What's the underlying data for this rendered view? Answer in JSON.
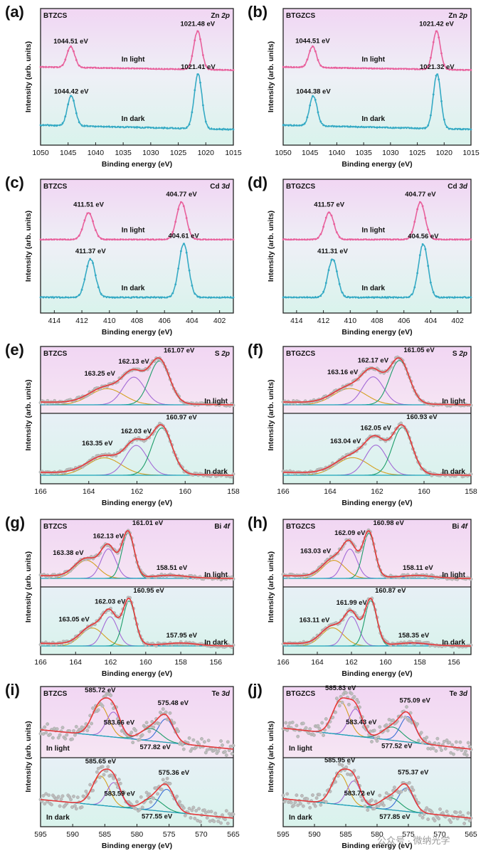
{
  "figure": {
    "watermark": "公众号 · 微纳光学",
    "colors": {
      "light_curve": "#e8609c",
      "dark_curve": "#35aac4",
      "fit_total": "#e8383a",
      "frame": "#222222",
      "bg_top": "#f3d8f2",
      "bg_bottom": "#dff3ee",
      "raw_gray": "#bdbdbd"
    },
    "ylabel": "Intensity (arb. units)",
    "xlabel": "Binding energy (eV)"
  },
  "chart_data": [
    {
      "panel": "(a)",
      "type": "line",
      "sample": "BTZCS",
      "element": "Zn",
      "orbital": "2p",
      "title": "Zn 2p",
      "xlabel": "Binding energy (eV)",
      "ylabel": "Intensity (arb. units)",
      "xlim": [
        1050,
        1015
      ],
      "xticks": [
        1050,
        1045,
        1040,
        1035,
        1030,
        1025,
        1020,
        1015
      ],
      "series": [
        {
          "name": "In light",
          "condition": "light",
          "peaks": [
            {
              "be": 1044.51,
              "label": "1044.51 eV"
            },
            {
              "be": 1021.48,
              "label": "1021.48 eV"
            }
          ]
        },
        {
          "name": "In dark",
          "condition": "dark",
          "peaks": [
            {
              "be": 1044.42,
              "label": "1044.42 eV"
            },
            {
              "be": 1021.41,
              "label": "1021.41 eV"
            }
          ]
        }
      ]
    },
    {
      "panel": "(b)",
      "type": "line",
      "sample": "BTGZCS",
      "element": "Zn",
      "orbital": "2p",
      "title": "Zn 2p",
      "xlabel": "Binding energy (eV)",
      "ylabel": "Intensity (arb. units)",
      "xlim": [
        1050,
        1015
      ],
      "xticks": [
        1050,
        1045,
        1040,
        1035,
        1030,
        1025,
        1020,
        1015
      ],
      "series": [
        {
          "name": "In light",
          "condition": "light",
          "peaks": [
            {
              "be": 1044.51,
              "label": "1044.51 eV"
            },
            {
              "be": 1021.42,
              "label": "1021.42 eV"
            }
          ]
        },
        {
          "name": "In dark",
          "condition": "dark",
          "peaks": [
            {
              "be": 1044.38,
              "label": "1044.38 eV"
            },
            {
              "be": 1021.32,
              "label": "1021.32 eV"
            }
          ]
        }
      ]
    },
    {
      "panel": "(c)",
      "type": "line",
      "sample": "BTZCS",
      "element": "Cd",
      "orbital": "3d",
      "title": "Cd 3d",
      "xlabel": "Binding energy (eV)",
      "ylabel": "Intensity (arb. units)",
      "xlim": [
        415,
        401
      ],
      "xticks": [
        414,
        412,
        410,
        408,
        406,
        404,
        402
      ],
      "series": [
        {
          "name": "In light",
          "condition": "light",
          "peaks": [
            {
              "be": 411.51,
              "label": "411.51 eV"
            },
            {
              "be": 404.77,
              "label": "404.77 eV"
            }
          ]
        },
        {
          "name": "In dark",
          "condition": "dark",
          "peaks": [
            {
              "be": 411.37,
              "label": "411.37 eV"
            },
            {
              "be": 404.61,
              "label": "404.61 eV"
            }
          ]
        }
      ]
    },
    {
      "panel": "(d)",
      "type": "line",
      "sample": "BTGZCS",
      "element": "Cd",
      "orbital": "3d",
      "title": "Cd 3d",
      "xlabel": "Binding energy (eV)",
      "ylabel": "Intensity (arb. units)",
      "xlim": [
        415,
        401
      ],
      "xticks": [
        414,
        412,
        410,
        408,
        406,
        404,
        402
      ],
      "series": [
        {
          "name": "In light",
          "condition": "light",
          "peaks": [
            {
              "be": 411.57,
              "label": "411.57 eV"
            },
            {
              "be": 404.77,
              "label": "404.77 eV"
            }
          ]
        },
        {
          "name": "In dark",
          "condition": "dark",
          "peaks": [
            {
              "be": 411.31,
              "label": "411.31 eV"
            },
            {
              "be": 404.56,
              "label": "404.56 eV"
            }
          ]
        }
      ]
    },
    {
      "panel": "(e)",
      "type": "line",
      "sample": "BTZCS",
      "element": "S",
      "orbital": "2p",
      "title": "S 2p",
      "xlabel": "Binding energy (eV)",
      "ylabel": "Intensity (arb. units)",
      "xlim": [
        166,
        158
      ],
      "xticks": [
        166,
        164,
        162,
        160,
        158
      ],
      "series": [
        {
          "name": "In light",
          "condition": "light",
          "peaks": [
            {
              "be": 163.25,
              "label": "163.25 eV"
            },
            {
              "be": 162.13,
              "label": "162.13 eV"
            },
            {
              "be": 161.07,
              "label": "161.07 eV"
            }
          ]
        },
        {
          "name": "In dark",
          "condition": "dark",
          "peaks": [
            {
              "be": 163.35,
              "label": "163.35 eV"
            },
            {
              "be": 162.03,
              "label": "162.03 eV"
            },
            {
              "be": 160.97,
              "label": "160.97 eV"
            }
          ]
        }
      ]
    },
    {
      "panel": "(f)",
      "type": "line",
      "sample": "BTGZCS",
      "element": "S",
      "orbital": "2p",
      "title": "S 2p",
      "xlabel": "Binding energy (eV)",
      "ylabel": "Intensity (arb. units)",
      "xlim": [
        166,
        158
      ],
      "xticks": [
        166,
        164,
        162,
        160,
        158
      ],
      "series": [
        {
          "name": "In light",
          "condition": "light",
          "peaks": [
            {
              "be": 163.16,
              "label": "163.16 eV"
            },
            {
              "be": 162.17,
              "label": "162.17 eV"
            },
            {
              "be": 161.05,
              "label": "161.05 eV"
            }
          ]
        },
        {
          "name": "In dark",
          "condition": "dark",
          "peaks": [
            {
              "be": 163.04,
              "label": "163.04 eV"
            },
            {
              "be": 162.05,
              "label": "162.05 eV"
            },
            {
              "be": 160.93,
              "label": "160.93 eV"
            }
          ]
        }
      ]
    },
    {
      "panel": "(g)",
      "type": "line",
      "sample": "BTZCS",
      "element": "Bi",
      "orbital": "4f",
      "title": "Bi 4f",
      "xlabel": "Binding energy (eV)",
      "ylabel": "Intensity (arb. units)",
      "xlim": [
        166,
        155
      ],
      "xticks": [
        166,
        164,
        162,
        160,
        158,
        156
      ],
      "series": [
        {
          "name": "In light",
          "condition": "light",
          "peaks": [
            {
              "be": 163.38,
              "label": "163.38 eV"
            },
            {
              "be": 162.13,
              "label": "162.13 eV"
            },
            {
              "be": 161.01,
              "label": "161.01 eV"
            },
            {
              "be": 158.51,
              "label": "158.51 eV"
            }
          ]
        },
        {
          "name": "In dark",
          "condition": "dark",
          "peaks": [
            {
              "be": 163.05,
              "label": "163.05 eV"
            },
            {
              "be": 162.03,
              "label": "162.03 eV"
            },
            {
              "be": 160.95,
              "label": "160.95 eV"
            },
            {
              "be": 157.95,
              "label": "157.95 eV"
            }
          ]
        }
      ]
    },
    {
      "panel": "(h)",
      "type": "line",
      "sample": "BTGZCS",
      "element": "Bi",
      "orbital": "4f",
      "title": "Bi 4f",
      "xlabel": "Binding energy (eV)",
      "ylabel": "Intensity (arb. units)",
      "xlim": [
        166,
        155
      ],
      "xticks": [
        166,
        164,
        162,
        160,
        158,
        156
      ],
      "series": [
        {
          "name": "In light",
          "condition": "light",
          "peaks": [
            {
              "be": 163.03,
              "label": "163.03 eV"
            },
            {
              "be": 162.09,
              "label": "162.09 eV"
            },
            {
              "be": 160.98,
              "label": "160.98 eV"
            },
            {
              "be": 158.11,
              "label": "158.11 eV"
            }
          ]
        },
        {
          "name": "In dark",
          "condition": "dark",
          "peaks": [
            {
              "be": 163.11,
              "label": "163.11 eV"
            },
            {
              "be": 161.99,
              "label": "161.99 eV"
            },
            {
              "be": 160.87,
              "label": "160.87 eV"
            },
            {
              "be": 158.35,
              "label": "158.35 eV"
            }
          ]
        }
      ]
    },
    {
      "panel": "(i)",
      "type": "line",
      "sample": "BTZCS",
      "element": "Te",
      "orbital": "3d",
      "title": "Te 3d",
      "xlabel": "Binding energy (eV)",
      "ylabel": "Intensity (arb. units)",
      "xlim": [
        595,
        565
      ],
      "xticks": [
        595,
        590,
        585,
        580,
        575,
        570,
        565
      ],
      "series": [
        {
          "name": "In light",
          "condition": "light",
          "peaks": [
            {
              "be": 585.72,
              "label": "585.72 eV"
            },
            {
              "be": 583.66,
              "label": "583.66 eV"
            },
            {
              "be": 577.82,
              "label": "577.82 eV"
            },
            {
              "be": 575.48,
              "label": "575.48 eV"
            }
          ]
        },
        {
          "name": "In dark",
          "condition": "dark",
          "peaks": [
            {
              "be": 585.65,
              "label": "585.65 eV"
            },
            {
              "be": 583.59,
              "label": "583.59 eV"
            },
            {
              "be": 577.55,
              "label": "577.55 eV"
            },
            {
              "be": 575.36,
              "label": "575.36 eV"
            }
          ]
        }
      ]
    },
    {
      "panel": "(j)",
      "type": "line",
      "sample": "BTGZCS",
      "element": "Te",
      "orbital": "3d",
      "title": "Te 3d",
      "xlabel": "Binding energy (eV)",
      "ylabel": "Intensity (arb. units)",
      "xlim": [
        595,
        565
      ],
      "xticks": [
        595,
        590,
        585,
        580,
        575,
        570,
        565
      ],
      "series": [
        {
          "name": "In light",
          "condition": "light",
          "peaks": [
            {
              "be": 585.83,
              "label": "585.83 eV"
            },
            {
              "be": 583.43,
              "label": "583.43 eV"
            },
            {
              "be": 577.52,
              "label": "577.52 eV"
            },
            {
              "be": 575.09,
              "label": "575.09 eV"
            }
          ]
        },
        {
          "name": "In dark",
          "condition": "dark",
          "peaks": [
            {
              "be": 585.95,
              "label": "585.95 eV"
            },
            {
              "be": 583.72,
              "label": "583.72 eV"
            },
            {
              "be": 577.85,
              "label": "577.85 eV"
            },
            {
              "be": 575.37,
              "label": "575.37 eV"
            }
          ]
        }
      ]
    }
  ]
}
